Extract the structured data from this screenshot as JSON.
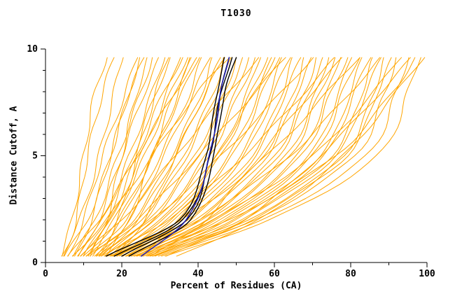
{
  "chart_data": {
    "type": "line",
    "title": "T1030",
    "xlabel": "Percent of Residues (CA)",
    "ylabel": "Distance Cutoff, A",
    "xlim": [
      0,
      100
    ],
    "ylim": [
      0,
      10
    ],
    "x_ticks": [
      0,
      20,
      40,
      60,
      80,
      100
    ],
    "x_minor_ticks": [
      10,
      30,
      50,
      70,
      90
    ],
    "y_ticks": [
      0,
      5,
      10
    ],
    "y_minor_ticks": [
      1,
      2,
      3,
      4,
      6,
      7,
      8,
      9
    ],
    "grid": false,
    "legend": "none",
    "anchor_y": [
      0.3,
      2,
      5,
      8,
      9.6
    ],
    "series_groups": [
      {
        "name": "model-curves-orange",
        "color": "#ffa500",
        "width": 1,
        "wiggle": 2.2,
        "curves": [
          [
            4,
            9,
            14,
            18,
            20
          ],
          [
            5,
            11,
            17,
            22,
            25
          ],
          [
            6,
            10,
            15,
            21,
            24
          ],
          [
            7,
            13,
            19,
            25,
            28
          ],
          [
            8,
            12,
            17,
            22,
            26
          ],
          [
            8,
            15,
            22,
            28,
            31
          ],
          [
            9,
            14,
            20,
            26,
            30
          ],
          [
            9,
            17,
            25,
            32,
            35
          ],
          [
            10,
            16,
            23,
            29,
            33
          ],
          [
            10,
            19,
            28,
            35,
            38
          ],
          [
            11,
            17,
            24,
            31,
            36
          ],
          [
            11,
            21,
            30,
            38,
            41
          ],
          [
            12,
            18,
            26,
            33,
            37
          ],
          [
            12,
            23,
            33,
            41,
            44
          ],
          [
            13,
            20,
            28,
            36,
            40
          ],
          [
            13,
            25,
            36,
            44,
            47
          ],
          [
            14,
            22,
            31,
            39,
            43
          ],
          [
            14,
            27,
            39,
            47,
            50
          ],
          [
            15,
            24,
            34,
            42,
            46
          ],
          [
            15,
            29,
            42,
            50,
            53
          ],
          [
            16,
            26,
            37,
            45,
            49
          ],
          [
            16,
            31,
            45,
            53,
            56
          ],
          [
            17,
            28,
            40,
            48,
            52
          ],
          [
            17,
            33,
            48,
            56,
            59
          ],
          [
            18,
            30,
            43,
            51,
            55
          ],
          [
            18,
            35,
            51,
            59,
            62
          ],
          [
            19,
            32,
            46,
            54,
            58
          ],
          [
            19,
            37,
            54,
            62,
            65
          ],
          [
            20,
            34,
            49,
            57,
            61
          ],
          [
            20,
            39,
            57,
            65,
            68
          ],
          [
            21,
            36,
            52,
            60,
            64
          ],
          [
            21,
            41,
            60,
            68,
            71
          ],
          [
            22,
            38,
            55,
            63,
            67
          ],
          [
            22,
            43,
            63,
            71,
            74
          ],
          [
            23,
            40,
            58,
            66,
            70
          ],
          [
            23,
            45,
            66,
            74,
            77
          ],
          [
            24,
            42,
            61,
            69,
            73
          ],
          [
            24,
            47,
            69,
            77,
            80
          ],
          [
            25,
            44,
            64,
            72,
            76
          ],
          [
            25,
            49,
            72,
            80,
            83
          ],
          [
            26,
            46,
            67,
            75,
            79
          ],
          [
            26,
            51,
            75,
            83,
            86
          ],
          [
            27,
            48,
            70,
            78,
            82
          ],
          [
            27,
            53,
            78,
            86,
            89
          ],
          [
            28,
            50,
            73,
            81,
            85
          ],
          [
            28,
            55,
            81,
            89,
            92
          ],
          [
            29,
            52,
            76,
            84,
            88
          ],
          [
            30,
            57,
            84,
            92,
            95
          ],
          [
            30,
            54,
            79,
            87,
            91
          ],
          [
            31,
            59,
            87,
            95,
            98
          ],
          [
            6,
            14,
            24,
            34,
            40
          ],
          [
            7,
            16,
            28,
            40,
            48
          ],
          [
            9,
            20,
            34,
            48,
            56
          ],
          [
            11,
            24,
            40,
            55,
            63
          ],
          [
            13,
            28,
            46,
            62,
            70
          ],
          [
            15,
            32,
            52,
            68,
            76
          ],
          [
            17,
            36,
            58,
            74,
            82
          ],
          [
            19,
            40,
            64,
            80,
            88
          ],
          [
            21,
            44,
            70,
            86,
            93
          ],
          [
            23,
            48,
            76,
            91,
            97
          ],
          [
            5,
            8,
            11,
            15,
            18
          ],
          [
            4,
            7,
            10,
            13,
            16
          ],
          [
            32,
            52,
            72,
            88,
            96
          ],
          [
            34,
            56,
            78,
            92,
            99
          ],
          [
            12,
            16,
            20,
            24,
            27
          ],
          [
            14,
            19,
            24,
            29,
            32
          ],
          [
            16,
            22,
            28,
            34,
            38
          ],
          [
            18,
            26,
            34,
            42,
            47
          ],
          [
            25,
            35,
            45,
            55,
            60
          ],
          [
            28,
            42,
            56,
            70,
            78
          ]
        ]
      },
      {
        "name": "model-curves-black",
        "color": "#000000",
        "width": 1.4,
        "wiggle": 0.8,
        "curves": [
          [
            16,
            35,
            42,
            45,
            47
          ],
          [
            18,
            36,
            43,
            46,
            48
          ],
          [
            20,
            37,
            43,
            46,
            49
          ],
          [
            22,
            38,
            44,
            47,
            50
          ]
        ]
      },
      {
        "name": "model-curve-blue",
        "color": "#2020b8",
        "width": 1.5,
        "wiggle": 0.8,
        "curves": [
          [
            25,
            37,
            43,
            46,
            48
          ]
        ]
      }
    ]
  }
}
